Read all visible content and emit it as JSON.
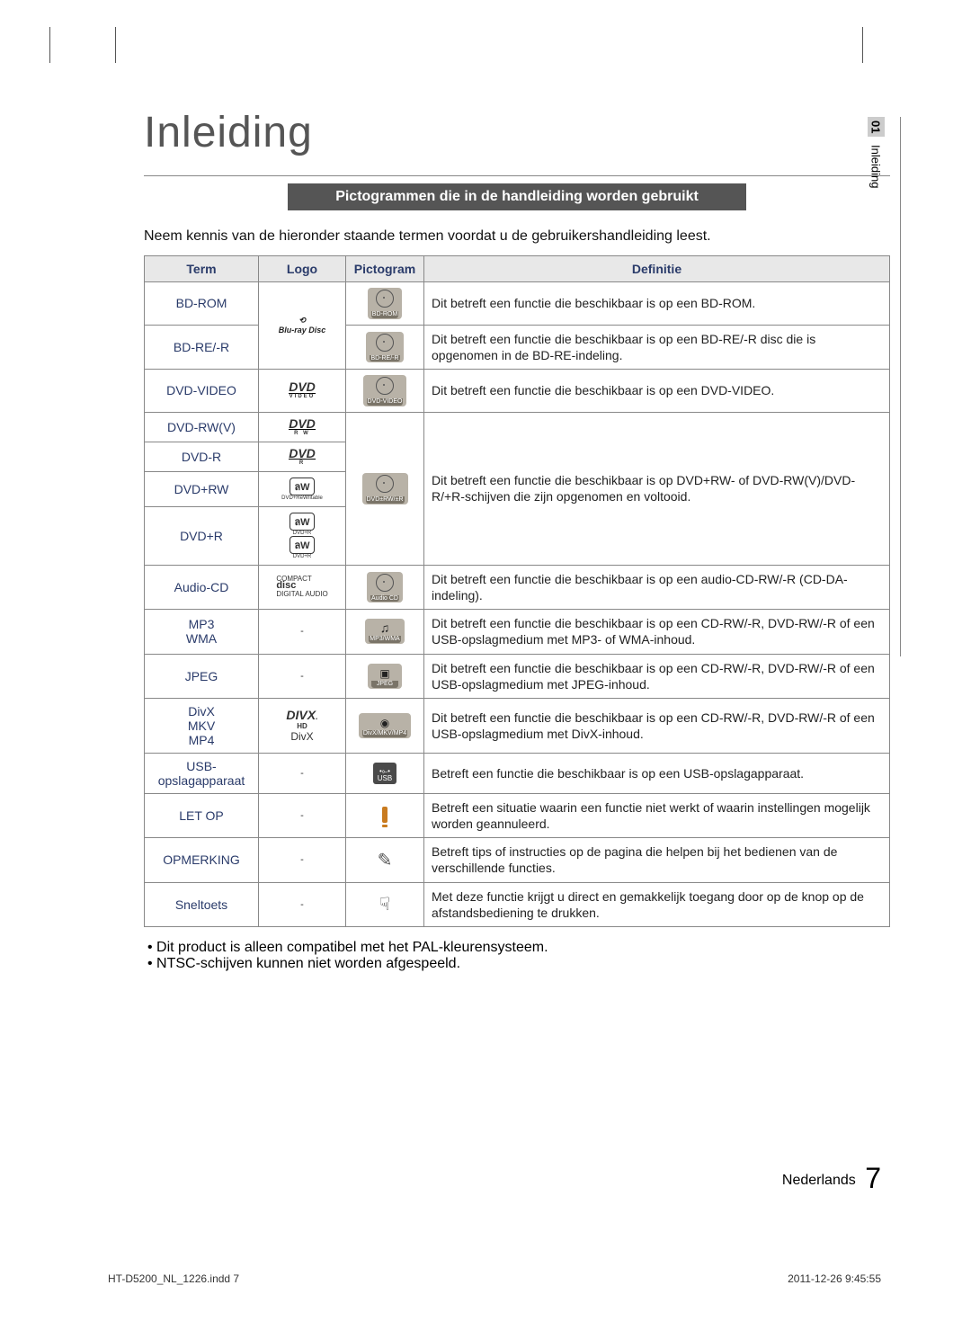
{
  "title": "Inleiding",
  "sectionBand": "Pictogrammen die in de handleiding worden gebruikt",
  "intro": "Neem kennis van de hieronder staande termen voordat u de gebruikershandleiding leest.",
  "sideTab": {
    "chapter": "01",
    "label": "Inleiding"
  },
  "table": {
    "headers": {
      "term": "Term",
      "logo": "Logo",
      "picto": "Pictogram",
      "def": "Definitie"
    },
    "rows": {
      "bdrom": {
        "term": "BD-ROM",
        "pictLabel": "BD-ROM",
        "def": "Dit betreft een functie die beschikbaar is op een BD-ROM."
      },
      "bdre": {
        "term": "BD-RE/-R",
        "pictLabel": "BD-RE/-R",
        "def": "Dit betreft een functie die beschikbaar is op een BD-RE/-R disc die is opgenomen in de BD-RE-indeling."
      },
      "dvdvideo": {
        "term": "DVD-VIDEO",
        "logoSub": "VIDEO",
        "pictLabel": "DVD-VIDEO",
        "def": "Dit betreft een functie die beschikbaar is op een DVD-VIDEO."
      },
      "dvdrwv": {
        "term": "DVD-RW(V)",
        "logoSub": "R W"
      },
      "dvdr": {
        "term": "DVD-R",
        "logoSub": "R"
      },
      "dvdprw": {
        "term": "DVD+RW"
      },
      "dvdpr": {
        "term": "DVD+R"
      },
      "dvdgroup": {
        "pictLabel": "DVD±RW/±R",
        "def": "Dit betreft een functie die beschikbaar is op DVD+RW- of DVD-RW(V)/DVD-R/+R-schijven die zijn opgenomen en voltooid."
      },
      "audiocd": {
        "term": "Audio-CD",
        "pictLabel": "Audio CD",
        "def": "Dit betreft een functie die beschikbaar is op een audio-CD-RW/-R (CD-DA-indeling)."
      },
      "mp3": {
        "term1": "MP3",
        "term2": "WMA",
        "logo": "-",
        "pictLabel": "MP3/WMA",
        "def": "Dit betreft een functie die beschikbaar is op een CD-RW/-R, DVD-RW/-R of een USB-opslagmedium met MP3- of WMA-inhoud."
      },
      "jpeg": {
        "term": "JPEG",
        "logo": "-",
        "pictLabel": "JPEG",
        "def": "Dit betreft een functie die beschikbaar is op een CD-RW/-R, DVD-RW/-R of een USB-opslagmedium met JPEG-inhoud."
      },
      "divx": {
        "term1": "DivX",
        "term2": "MKV",
        "term3": "MP4",
        "logo2": "DivX",
        "pictLabel": "DivX/MKV/MP4",
        "def": "Dit betreft een functie die beschikbaar is op een CD-RW/-R, DVD-RW/-R of een USB-opslagmedium met DivX-inhoud."
      },
      "usb": {
        "term1": "USB-",
        "term2": "opslagapparaat",
        "logo": "-",
        "pictLabel": "USB",
        "def": "Betreft een functie die beschikbaar is op een USB-opslagapparaat."
      },
      "letop": {
        "term": "LET OP",
        "logo": "-",
        "def": "Betreft een situatie waarin een functie niet werkt of waarin instellingen mogelijk worden geannuleerd."
      },
      "opm": {
        "term": "OPMERKING",
        "logo": "-",
        "def": "Betreft tips of instructies op de pagina die helpen bij het bedienen van de verschillende functies."
      },
      "snel": {
        "term": "Sneltoets",
        "logo": "-",
        "def": "Met deze functie krijgt u direct en gemakkelijk toegang door op de knop op de afstandsbediening te drukken."
      }
    }
  },
  "bullets": {
    "b1": "Dit product is alleen compatibel met het PAL-kleurensysteem.",
    "b2": "NTSC-schijven kunnen niet worden afgespeeld."
  },
  "footer": {
    "lang": "Nederlands",
    "page": "7"
  },
  "imprint": {
    "left": "HT-D5200_NL_1226.indd   7",
    "right": "2011-12-26   9:45:55"
  }
}
